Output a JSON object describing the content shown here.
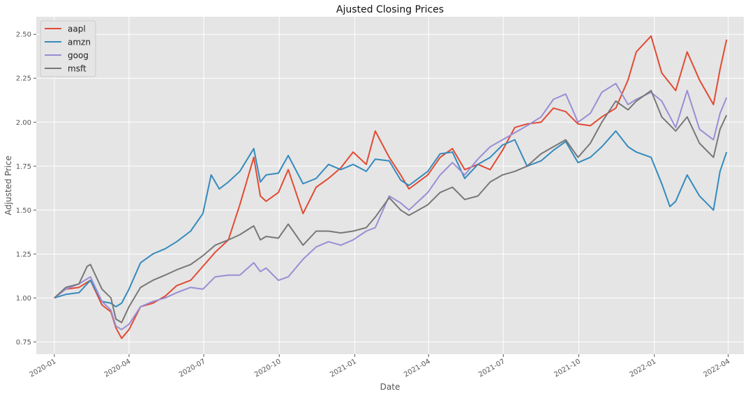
{
  "chart_data": {
    "type": "line",
    "title": "Ajusted Closing Prices",
    "xlabel": "Date",
    "ylabel": "Adjusted Price",
    "xlim": [
      "2019-12-10",
      "2022-04-20"
    ],
    "ylim": [
      0.68,
      2.6
    ],
    "x_ticks": [
      "2020-01",
      "2020-04",
      "2020-07",
      "2020-10",
      "2021-01",
      "2021-04",
      "2021-07",
      "2021-10",
      "2022-01",
      "2022-04"
    ],
    "y_ticks": [
      "0.75",
      "1.00",
      "1.25",
      "1.50",
      "1.75",
      "2.00",
      "2.25",
      "2.50"
    ],
    "grid": true,
    "legend_position": "top-left",
    "background": "#e5e5e5",
    "series": [
      {
        "name": "aapl",
        "color": "#e24a33",
        "points": [
          [
            "2020-01-01",
            1.0
          ],
          [
            "2020-01-15",
            1.05
          ],
          [
            "2020-01-31",
            1.06
          ],
          [
            "2020-02-14",
            1.1
          ],
          [
            "2020-02-28",
            0.96
          ],
          [
            "2020-03-10",
            0.92
          ],
          [
            "2020-03-16",
            0.83
          ],
          [
            "2020-03-23",
            0.77
          ],
          [
            "2020-04-01",
            0.82
          ],
          [
            "2020-04-15",
            0.95
          ],
          [
            "2020-04-30",
            0.97
          ],
          [
            "2020-05-15",
            1.01
          ],
          [
            "2020-05-29",
            1.07
          ],
          [
            "2020-06-15",
            1.1
          ],
          [
            "2020-06-30",
            1.18
          ],
          [
            "2020-07-15",
            1.26
          ],
          [
            "2020-07-31",
            1.33
          ],
          [
            "2020-08-14",
            1.53
          ],
          [
            "2020-08-31",
            1.8
          ],
          [
            "2020-09-08",
            1.58
          ],
          [
            "2020-09-15",
            1.55
          ],
          [
            "2020-09-30",
            1.6
          ],
          [
            "2020-10-12",
            1.73
          ],
          [
            "2020-10-30",
            1.48
          ],
          [
            "2020-11-15",
            1.63
          ],
          [
            "2020-11-30",
            1.68
          ],
          [
            "2020-12-15",
            1.74
          ],
          [
            "2020-12-30",
            1.83
          ],
          [
            "2021-01-15",
            1.76
          ],
          [
            "2021-01-26",
            1.95
          ],
          [
            "2021-02-12",
            1.8
          ],
          [
            "2021-02-26",
            1.7
          ],
          [
            "2021-03-08",
            1.62
          ],
          [
            "2021-03-31",
            1.7
          ],
          [
            "2021-04-15",
            1.8
          ],
          [
            "2021-04-30",
            1.85
          ],
          [
            "2021-05-15",
            1.73
          ],
          [
            "2021-05-31",
            1.76
          ],
          [
            "2021-06-15",
            1.73
          ],
          [
            "2021-06-30",
            1.84
          ],
          [
            "2021-07-15",
            1.97
          ],
          [
            "2021-07-30",
            1.99
          ],
          [
            "2021-08-16",
            2.0
          ],
          [
            "2021-08-31",
            2.08
          ],
          [
            "2021-09-15",
            2.06
          ],
          [
            "2021-09-30",
            1.99
          ],
          [
            "2021-10-15",
            1.98
          ],
          [
            "2021-10-29",
            2.03
          ],
          [
            "2021-11-15",
            2.08
          ],
          [
            "2021-11-30",
            2.24
          ],
          [
            "2021-12-10",
            2.4
          ],
          [
            "2021-12-28",
            2.49
          ],
          [
            "2022-01-10",
            2.28
          ],
          [
            "2022-01-27",
            2.18
          ],
          [
            "2022-02-10",
            2.4
          ],
          [
            "2022-02-25",
            2.24
          ],
          [
            "2022-03-14",
            2.1
          ],
          [
            "2022-03-22",
            2.3
          ],
          [
            "2022-03-30",
            2.47
          ]
        ]
      },
      {
        "name": "amzn",
        "color": "#348abd",
        "points": [
          [
            "2020-01-01",
            1.0
          ],
          [
            "2020-01-15",
            1.02
          ],
          [
            "2020-01-31",
            1.03
          ],
          [
            "2020-02-14",
            1.1
          ],
          [
            "2020-02-28",
            0.98
          ],
          [
            "2020-03-10",
            0.97
          ],
          [
            "2020-03-16",
            0.95
          ],
          [
            "2020-03-23",
            0.97
          ],
          [
            "2020-04-01",
            1.05
          ],
          [
            "2020-04-15",
            1.2
          ],
          [
            "2020-04-30",
            1.25
          ],
          [
            "2020-05-15",
            1.28
          ],
          [
            "2020-05-29",
            1.32
          ],
          [
            "2020-06-15",
            1.38
          ],
          [
            "2020-06-30",
            1.48
          ],
          [
            "2020-07-10",
            1.7
          ],
          [
            "2020-07-20",
            1.62
          ],
          [
            "2020-07-31",
            1.66
          ],
          [
            "2020-08-14",
            1.72
          ],
          [
            "2020-08-31",
            1.85
          ],
          [
            "2020-09-08",
            1.66
          ],
          [
            "2020-09-15",
            1.7
          ],
          [
            "2020-09-30",
            1.71
          ],
          [
            "2020-10-12",
            1.81
          ],
          [
            "2020-10-30",
            1.65
          ],
          [
            "2020-11-15",
            1.68
          ],
          [
            "2020-11-30",
            1.76
          ],
          [
            "2020-12-15",
            1.73
          ],
          [
            "2020-12-30",
            1.76
          ],
          [
            "2021-01-15",
            1.72
          ],
          [
            "2021-01-26",
            1.79
          ],
          [
            "2021-02-12",
            1.78
          ],
          [
            "2021-02-26",
            1.67
          ],
          [
            "2021-03-08",
            1.64
          ],
          [
            "2021-03-31",
            1.72
          ],
          [
            "2021-04-15",
            1.82
          ],
          [
            "2021-04-30",
            1.83
          ],
          [
            "2021-05-15",
            1.68
          ],
          [
            "2021-05-31",
            1.76
          ],
          [
            "2021-06-15",
            1.8
          ],
          [
            "2021-06-30",
            1.87
          ],
          [
            "2021-07-15",
            1.9
          ],
          [
            "2021-07-30",
            1.75
          ],
          [
            "2021-08-16",
            1.78
          ],
          [
            "2021-08-31",
            1.84
          ],
          [
            "2021-09-15",
            1.89
          ],
          [
            "2021-09-30",
            1.77
          ],
          [
            "2021-10-15",
            1.8
          ],
          [
            "2021-10-29",
            1.86
          ],
          [
            "2021-11-15",
            1.95
          ],
          [
            "2021-11-30",
            1.86
          ],
          [
            "2021-12-10",
            1.83
          ],
          [
            "2021-12-28",
            1.8
          ],
          [
            "2022-01-10",
            1.65
          ],
          [
            "2022-01-20",
            1.52
          ],
          [
            "2022-01-27",
            1.55
          ],
          [
            "2022-02-10",
            1.7
          ],
          [
            "2022-02-25",
            1.58
          ],
          [
            "2022-03-14",
            1.5
          ],
          [
            "2022-03-22",
            1.72
          ],
          [
            "2022-03-30",
            1.83
          ]
        ]
      },
      {
        "name": "goog",
        "color": "#988ed5",
        "points": [
          [
            "2020-01-01",
            1.0
          ],
          [
            "2020-01-15",
            1.05
          ],
          [
            "2020-01-31",
            1.08
          ],
          [
            "2020-02-14",
            1.12
          ],
          [
            "2020-02-28",
            0.98
          ],
          [
            "2020-03-10",
            0.93
          ],
          [
            "2020-03-16",
            0.84
          ],
          [
            "2020-03-23",
            0.82
          ],
          [
            "2020-04-01",
            0.85
          ],
          [
            "2020-04-15",
            0.95
          ],
          [
            "2020-04-30",
            0.98
          ],
          [
            "2020-05-15",
            1.0
          ],
          [
            "2020-05-29",
            1.03
          ],
          [
            "2020-06-15",
            1.06
          ],
          [
            "2020-06-30",
            1.05
          ],
          [
            "2020-07-15",
            1.12
          ],
          [
            "2020-07-31",
            1.13
          ],
          [
            "2020-08-14",
            1.13
          ],
          [
            "2020-08-31",
            1.2
          ],
          [
            "2020-09-08",
            1.15
          ],
          [
            "2020-09-15",
            1.17
          ],
          [
            "2020-09-30",
            1.1
          ],
          [
            "2020-10-12",
            1.12
          ],
          [
            "2020-10-30",
            1.22
          ],
          [
            "2020-11-15",
            1.29
          ],
          [
            "2020-11-30",
            1.32
          ],
          [
            "2020-12-15",
            1.3
          ],
          [
            "2020-12-30",
            1.33
          ],
          [
            "2021-01-15",
            1.38
          ],
          [
            "2021-01-26",
            1.4
          ],
          [
            "2021-02-12",
            1.58
          ],
          [
            "2021-02-26",
            1.54
          ],
          [
            "2021-03-08",
            1.5
          ],
          [
            "2021-03-31",
            1.6
          ],
          [
            "2021-04-15",
            1.7
          ],
          [
            "2021-04-30",
            1.77
          ],
          [
            "2021-05-15",
            1.7
          ],
          [
            "2021-05-31",
            1.79
          ],
          [
            "2021-06-15",
            1.86
          ],
          [
            "2021-06-30",
            1.9
          ],
          [
            "2021-07-15",
            1.94
          ],
          [
            "2021-07-30",
            1.98
          ],
          [
            "2021-08-16",
            2.03
          ],
          [
            "2021-08-31",
            2.13
          ],
          [
            "2021-09-15",
            2.16
          ],
          [
            "2021-09-30",
            2.0
          ],
          [
            "2021-10-15",
            2.05
          ],
          [
            "2021-10-29",
            2.17
          ],
          [
            "2021-11-15",
            2.22
          ],
          [
            "2021-11-30",
            2.1
          ],
          [
            "2021-12-10",
            2.13
          ],
          [
            "2021-12-28",
            2.17
          ],
          [
            "2022-01-10",
            2.12
          ],
          [
            "2022-01-27",
            1.97
          ],
          [
            "2022-02-10",
            2.18
          ],
          [
            "2022-02-25",
            1.96
          ],
          [
            "2022-03-14",
            1.9
          ],
          [
            "2022-03-22",
            2.05
          ],
          [
            "2022-03-30",
            2.14
          ]
        ]
      },
      {
        "name": "msft",
        "color": "#777777",
        "points": [
          [
            "2020-01-01",
            1.0
          ],
          [
            "2020-01-15",
            1.06
          ],
          [
            "2020-01-31",
            1.08
          ],
          [
            "2020-02-10",
            1.18
          ],
          [
            "2020-02-14",
            1.19
          ],
          [
            "2020-02-28",
            1.05
          ],
          [
            "2020-03-10",
            1.0
          ],
          [
            "2020-03-16",
            0.88
          ],
          [
            "2020-03-23",
            0.86
          ],
          [
            "2020-04-01",
            0.95
          ],
          [
            "2020-04-15",
            1.06
          ],
          [
            "2020-04-30",
            1.1
          ],
          [
            "2020-05-15",
            1.13
          ],
          [
            "2020-05-29",
            1.16
          ],
          [
            "2020-06-15",
            1.19
          ],
          [
            "2020-06-30",
            1.24
          ],
          [
            "2020-07-15",
            1.3
          ],
          [
            "2020-07-31",
            1.33
          ],
          [
            "2020-08-14",
            1.36
          ],
          [
            "2020-08-31",
            1.41
          ],
          [
            "2020-09-08",
            1.33
          ],
          [
            "2020-09-15",
            1.35
          ],
          [
            "2020-09-30",
            1.34
          ],
          [
            "2020-10-12",
            1.42
          ],
          [
            "2020-10-30",
            1.3
          ],
          [
            "2020-11-15",
            1.38
          ],
          [
            "2020-11-30",
            1.38
          ],
          [
            "2020-12-15",
            1.37
          ],
          [
            "2020-12-30",
            1.38
          ],
          [
            "2021-01-15",
            1.4
          ],
          [
            "2021-01-26",
            1.46
          ],
          [
            "2021-02-12",
            1.57
          ],
          [
            "2021-02-26",
            1.5
          ],
          [
            "2021-03-08",
            1.47
          ],
          [
            "2021-03-31",
            1.53
          ],
          [
            "2021-04-15",
            1.6
          ],
          [
            "2021-04-30",
            1.63
          ],
          [
            "2021-05-15",
            1.56
          ],
          [
            "2021-05-31",
            1.58
          ],
          [
            "2021-06-15",
            1.66
          ],
          [
            "2021-06-30",
            1.7
          ],
          [
            "2021-07-15",
            1.72
          ],
          [
            "2021-07-30",
            1.75
          ],
          [
            "2021-08-16",
            1.82
          ],
          [
            "2021-08-31",
            1.86
          ],
          [
            "2021-09-15",
            1.9
          ],
          [
            "2021-09-30",
            1.8
          ],
          [
            "2021-10-15",
            1.88
          ],
          [
            "2021-10-29",
            2.0
          ],
          [
            "2021-11-15",
            2.12
          ],
          [
            "2021-11-30",
            2.07
          ],
          [
            "2021-12-10",
            2.12
          ],
          [
            "2021-12-28",
            2.18
          ],
          [
            "2022-01-10",
            2.03
          ],
          [
            "2022-01-27",
            1.95
          ],
          [
            "2022-02-10",
            2.03
          ],
          [
            "2022-02-25",
            1.88
          ],
          [
            "2022-03-14",
            1.8
          ],
          [
            "2022-03-22",
            1.96
          ],
          [
            "2022-03-30",
            2.04
          ]
        ]
      }
    ]
  }
}
